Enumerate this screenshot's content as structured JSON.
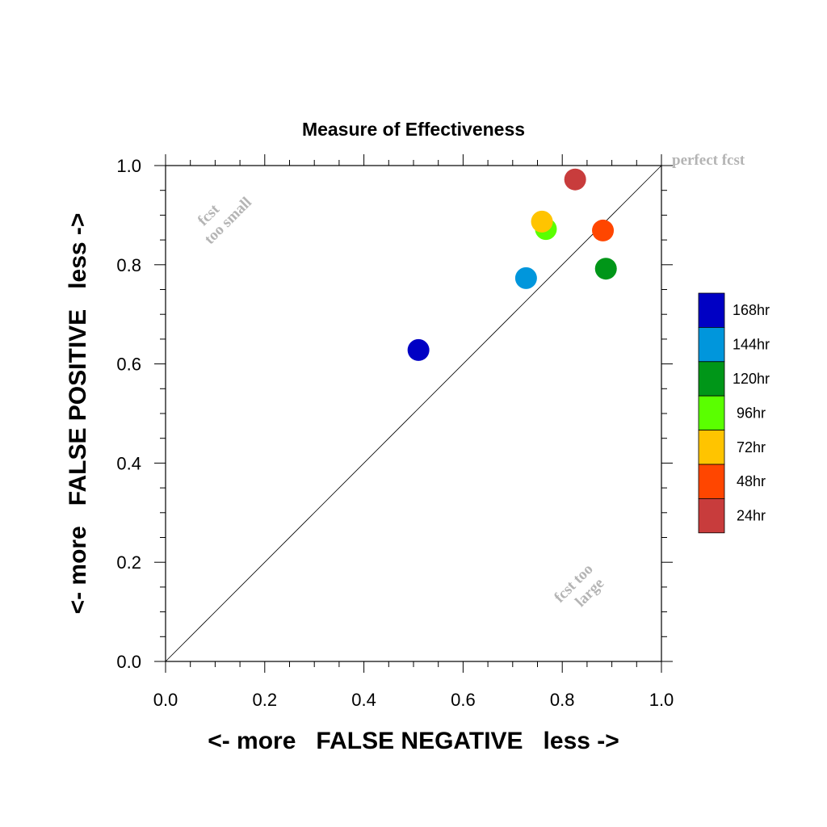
{
  "chart_data": {
    "type": "scatter",
    "title": "Measure of Effectiveness",
    "xlabel": "<- more   FALSE NEGATIVE   less ->",
    "ylabel": "<- more   FALSE POSITIVE   less ->",
    "xlim": [
      0.0,
      1.0
    ],
    "ylim": [
      0.0,
      1.0
    ],
    "xticks": [
      "0.0",
      "0.2",
      "0.4",
      "0.6",
      "0.8",
      "1.0"
    ],
    "yticks": [
      "0.0",
      "0.2",
      "0.4",
      "0.6",
      "0.8",
      "1.0"
    ],
    "grid": false,
    "reference_line": {
      "from": [
        0,
        0
      ],
      "to": [
        1,
        1
      ]
    },
    "annotations": {
      "perfect": "perfect fcst",
      "too_small_1": "fcst",
      "too_small_2": "too small",
      "too_large_1": "fcst too",
      "too_large_2": "large"
    },
    "legend_position": "right",
    "series": [
      {
        "name": "168hr",
        "color": "#0000c4",
        "x": 0.51,
        "y": 0.628
      },
      {
        "name": "144hr",
        "color": "#0096dc",
        "x": 0.727,
        "y": 0.773
      },
      {
        "name": "120hr",
        "color": "#009618",
        "x": 0.888,
        "y": 0.792
      },
      {
        "name": "96hr",
        "color": "#5aff00",
        "x": 0.767,
        "y": 0.872
      },
      {
        "name": "72hr",
        "color": "#ffc400",
        "x": 0.759,
        "y": 0.887
      },
      {
        "name": "48hr",
        "color": "#ff4600",
        "x": 0.882,
        "y": 0.869
      },
      {
        "name": "24hr",
        "color": "#c83c3c",
        "x": 0.826,
        "y": 0.972
      }
    ]
  }
}
